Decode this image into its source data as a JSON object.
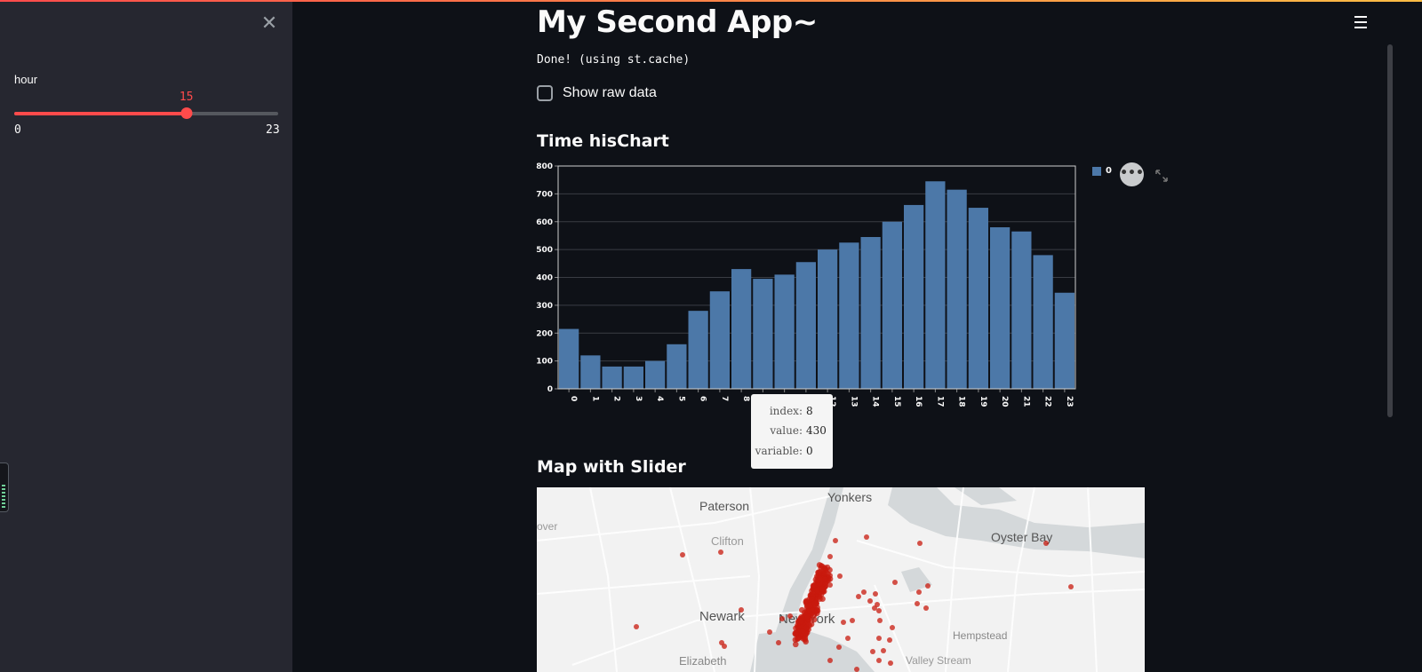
{
  "sidebar": {
    "close_icon": "close-icon",
    "slider": {
      "label": "hour",
      "value": "15",
      "min": "0",
      "max": "23",
      "fraction": 0.652,
      "accent_color": "#ff4b4b"
    }
  },
  "header": {
    "menu_icon": "hamburger-menu-icon"
  },
  "main": {
    "title": "My Second App~",
    "status": "Done! (using st.cache)",
    "checkbox_label": "Show raw data",
    "chart_title": "Time hisChart",
    "map_title": "Map with Slider"
  },
  "chart_data": {
    "type": "bar",
    "categories": [
      "0",
      "1",
      "2",
      "3",
      "4",
      "5",
      "6",
      "7",
      "8",
      "9",
      "10",
      "11",
      "12",
      "13",
      "14",
      "15",
      "16",
      "17",
      "18",
      "19",
      "20",
      "21",
      "22",
      "23"
    ],
    "series": [
      {
        "name": "0",
        "values": [
          215,
          120,
          80,
          80,
          100,
          160,
          280,
          350,
          430,
          395,
          410,
          455,
          500,
          525,
          545,
          600,
          660,
          745,
          715,
          650,
          580,
          565,
          480,
          345
        ]
      }
    ],
    "yticks": [
      "0",
      "100",
      "200",
      "300",
      "400",
      "500",
      "600",
      "700",
      "800"
    ],
    "ylim": [
      0,
      800
    ],
    "grid": true,
    "bar_color": "#4c78a8",
    "legend": {
      "label": "0",
      "placement": "top-right"
    },
    "tooltip": {
      "index_key": "index:",
      "index_val": "8",
      "value_key": "value:",
      "value_val": "430",
      "variable_key": "variable:",
      "variable_val": "0"
    }
  },
  "map": {
    "labels": {
      "paterson": "Paterson",
      "yonkers": "Yonkers",
      "clifton": "Clifton",
      "oyster_bay": "Oyster Bay",
      "newark": "Newark",
      "new_york": "New York",
      "hempstead": "Hempstead",
      "dover": "over",
      "elizabeth": "Elizabeth",
      "valley_stream": "Valley Stream"
    },
    "point_color": "#c8190e"
  }
}
